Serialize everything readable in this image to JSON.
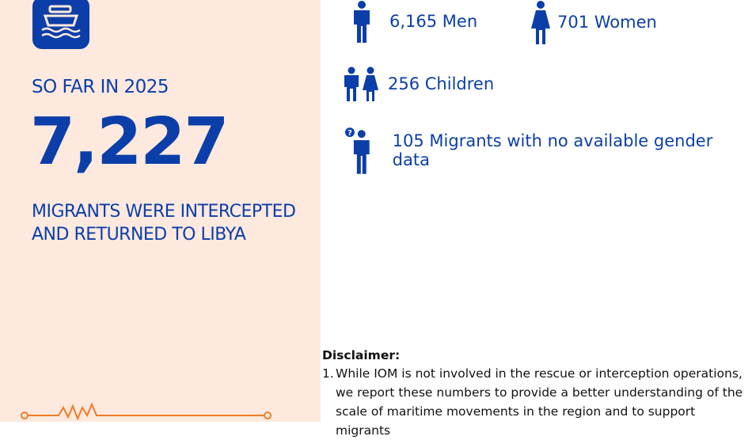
{
  "brand_color": "#0b3ea8",
  "accent_color": "#f07c28",
  "left": {
    "icon": "boat-on-water-icon",
    "so_far": "SO FAR IN 2025",
    "total": "7,227",
    "description_line1": "MIGRANTS WERE INTERCEPTED",
    "description_line2": "AND RETURNED TO LIBYA"
  },
  "stats": {
    "men": {
      "icon": "man-icon",
      "label": "6,165 Men"
    },
    "women": {
      "icon": "woman-icon",
      "label": "701 Women"
    },
    "children": {
      "icon": "children-icon",
      "label": "256 Children"
    },
    "unknown": {
      "icon": "unknown-gender-person-icon",
      "label": "105 Migrants with no available gender data"
    }
  },
  "disclaimer": {
    "title": "Disclaimer:",
    "items": [
      {
        "num": "1.",
        "text": "While IOM is not involved in the rescue or interception operations, we report these numbers to provide a better understanding of the scale of maritime movements in the region and to support migrants"
      }
    ]
  }
}
